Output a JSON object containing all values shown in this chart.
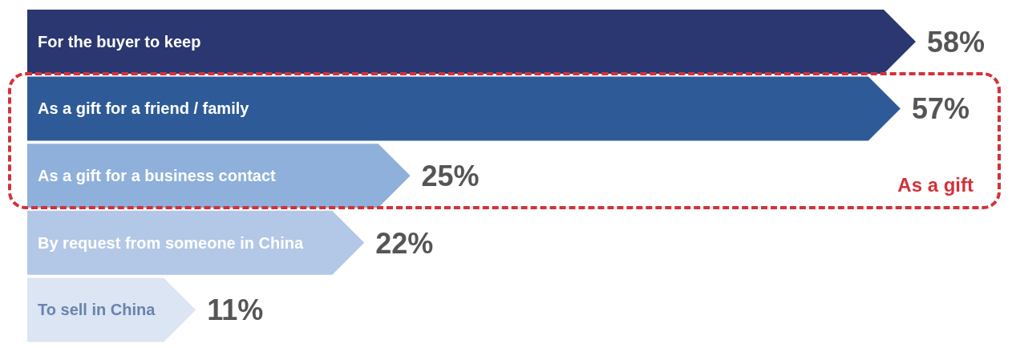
{
  "chart_data": {
    "type": "bar",
    "orientation": "horizontal",
    "categories": [
      "For the buyer to keep",
      "As a gift for a friend / family",
      "As a gift for a business contact",
      "By request from someone in China",
      "To sell in China"
    ],
    "values": [
      58,
      57,
      25,
      22,
      11
    ],
    "colors": [
      "#2b3770",
      "#2e5b97",
      "#8eb0da",
      "#b3c7e7",
      "#dbe5f3"
    ],
    "value_labels": [
      "58%",
      "57%",
      "25%",
      "22%",
      "11%"
    ],
    "annotations": [
      "As a gift"
    ]
  }
}
